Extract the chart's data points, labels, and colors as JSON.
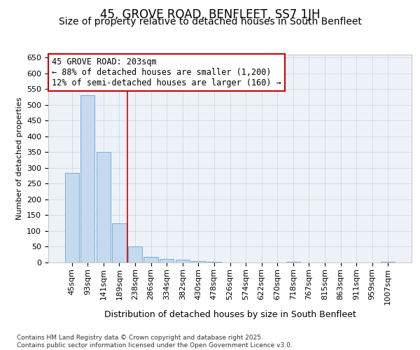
{
  "title": "45, GROVE ROAD, BENFLEET, SS7 1JH",
  "subtitle": "Size of property relative to detached houses in South Benfleet",
  "xlabel": "Distribution of detached houses by size in South Benfleet",
  "ylabel": "Number of detached properties",
  "categories": [
    "45sqm",
    "93sqm",
    "141sqm",
    "189sqm",
    "238sqm",
    "286sqm",
    "334sqm",
    "382sqm",
    "430sqm",
    "478sqm",
    "526sqm",
    "574sqm",
    "622sqm",
    "670sqm",
    "718sqm",
    "767sqm",
    "815sqm",
    "863sqm",
    "911sqm",
    "959sqm",
    "1007sqm"
  ],
  "values": [
    285,
    530,
    350,
    125,
    50,
    18,
    10,
    8,
    5,
    3,
    0,
    0,
    0,
    0,
    3,
    0,
    0,
    0,
    0,
    0,
    3
  ],
  "bar_color": "#c5d9ef",
  "bar_edge_color": "#7badd4",
  "vline_x": 3.5,
  "vline_color": "#cc0000",
  "annotation_text": "45 GROVE ROAD: 203sqm\n← 88% of detached houses are smaller (1,200)\n12% of semi-detached houses are larger (160) →",
  "annotation_box_facecolor": "#ffffff",
  "annotation_box_edgecolor": "#cc0000",
  "ylim": [
    0,
    660
  ],
  "yticks": [
    0,
    50,
    100,
    150,
    200,
    250,
    300,
    350,
    400,
    450,
    500,
    550,
    600,
    650
  ],
  "grid_color": "#c8d8ec",
  "background_color": "#eef2f8",
  "footer_text": "Contains HM Land Registry data © Crown copyright and database right 2025.\nContains public sector information licensed under the Open Government Licence v3.0.",
  "title_fontsize": 12,
  "subtitle_fontsize": 10,
  "xlabel_fontsize": 9,
  "ylabel_fontsize": 8,
  "tick_fontsize": 8,
  "annotation_fontsize": 8.5,
  "footer_fontsize": 6.5
}
